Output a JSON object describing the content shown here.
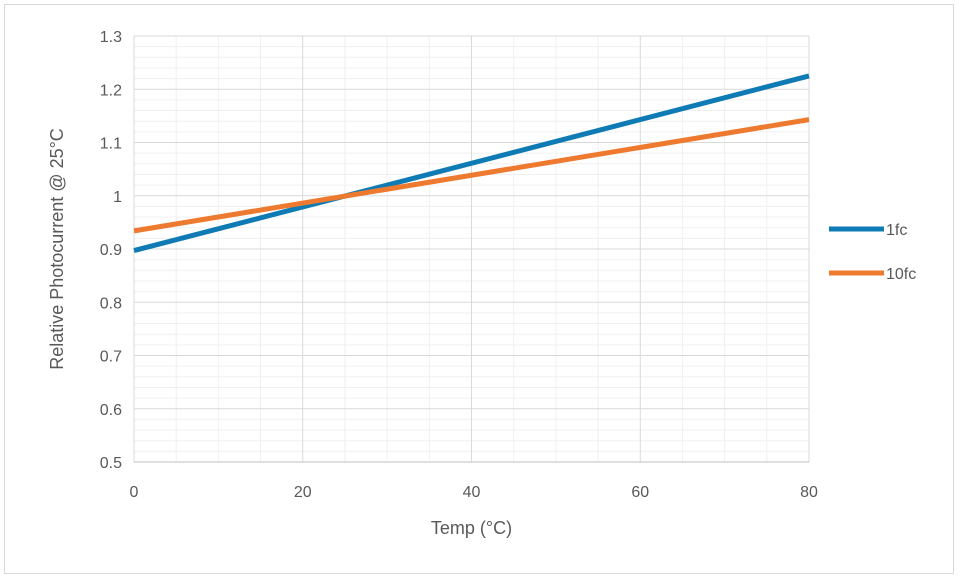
{
  "chart_data": {
    "type": "line",
    "title": "",
    "xlabel": "Temp (°C)",
    "ylabel": "Relative Photocurrent @ 25°C",
    "xlim": [
      0,
      80
    ],
    "ylim": [
      0.5,
      1.3
    ],
    "x_ticks": [
      "0",
      "20",
      "40",
      "60",
      "80"
    ],
    "y_ticks": [
      "0.5",
      "0.6",
      "0.7",
      "0.8",
      "0.9",
      "1",
      "1.1",
      "1.2",
      "1.3"
    ],
    "grid": true,
    "legend_position": "right",
    "series": [
      {
        "name": "1fc",
        "color": "#0e7bb4",
        "x": [
          0,
          80
        ],
        "y": [
          0.897,
          1.225
        ]
      },
      {
        "name": "10fc",
        "color": "#ee7a2f",
        "x": [
          0,
          80
        ],
        "y": [
          0.934,
          1.143
        ]
      }
    ]
  }
}
